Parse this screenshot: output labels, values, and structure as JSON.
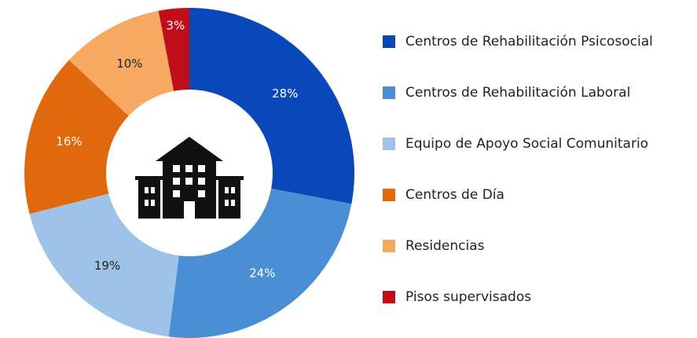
{
  "chart_data": {
    "type": "pie",
    "categories": [
      "Centros de Rehabilitación Psicosocial",
      "Centros de Rehabilitación Laboral",
      "Equipo de Apoyo Social Comunitario",
      "Centros de Día",
      "Residencias",
      "Pisos supervisados"
    ],
    "values": [
      28,
      24,
      19,
      16,
      10,
      3
    ],
    "value_labels": [
      "28%",
      "24%",
      "19%",
      "16%",
      "10%",
      "3%"
    ],
    "colors": [
      "#0a47b8",
      "#4a8fd4",
      "#9dc3e8",
      "#e0690e",
      "#f5a962",
      "#c00e1a"
    ],
    "legend": "right"
  }
}
